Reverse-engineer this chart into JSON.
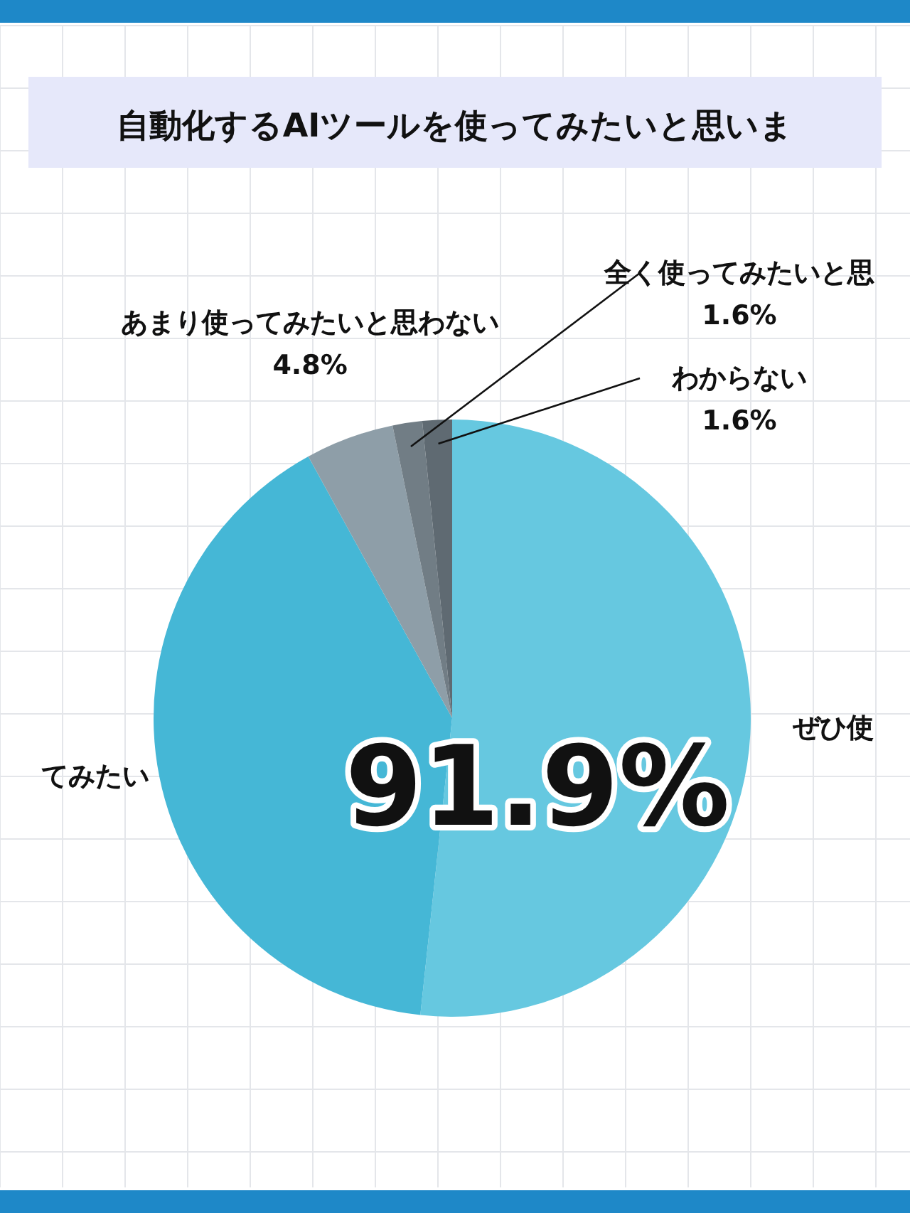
{
  "chart_data": {
    "type": "pie",
    "title": "自動化するAIツールを使ってみたいと思いま",
    "categories": [
      "ぜひ使",
      "てみたい",
      "あまり使ってみたいと思わない",
      "全く使ってみたいと思",
      "わからない"
    ],
    "values": [
      51.7,
      40.3,
      4.8,
      1.6,
      1.6
    ],
    "colors": [
      "#66c8e0",
      "#45b7d6",
      "#8e9ea8",
      "#717d85",
      "#5f6a72"
    ],
    "value_labels": [
      null,
      null,
      "4.8%",
      "1.6%",
      "1.6%"
    ],
    "annotations": [
      "91.9%"
    ]
  }
}
